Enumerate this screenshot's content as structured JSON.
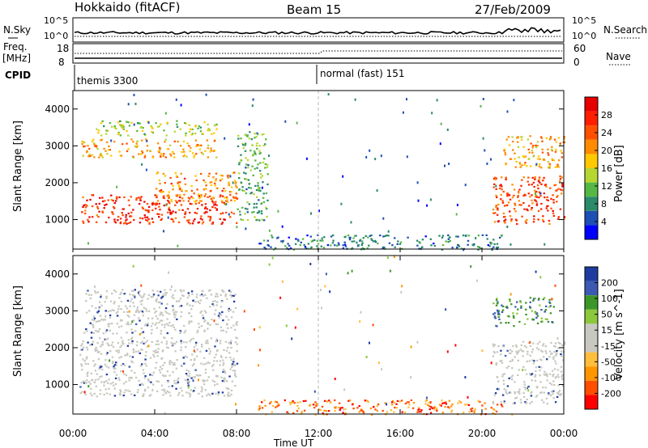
{
  "header": {
    "station": "Hokkaido (fitACF)",
    "beam": "Beam 15",
    "date": "27/Feb/2009"
  },
  "strip": {
    "nsky_label": "N.Sky",
    "freq_label_1": "Freq.",
    "freq_label_2": "[MHz]",
    "cpid_label": "CPID",
    "nsearch_label": "N.Search",
    "nave_label": "Nave",
    "noise_ticks_left": [
      "10^5",
      "10^0"
    ],
    "noise_ticks_right": [
      "10^5",
      "10^0"
    ],
    "freq_ticks": [
      "18",
      "8"
    ],
    "nave_ticks": [
      "60",
      "0"
    ],
    "cpid_modes": [
      "themis 3300",
      "normal (fast) 151"
    ]
  },
  "colors": {
    "power_scale": [
      "#0000ff",
      "#1e4fb4",
      "#2a8a6a",
      "#55b845",
      "#b6d632",
      "#ffc800",
      "#ff8c00",
      "#ff5000",
      "#ff1e00",
      "#e60000"
    ],
    "velocity_scale": [
      "#ff0000",
      "#ff4e00",
      "#ff9600",
      "#ffbe3c",
      "#c8c8c0",
      "#c8c8c0",
      "#8cc83c",
      "#3c9628",
      "#3c5ab4",
      "#1e3ca0"
    ]
  },
  "chart_data": [
    {
      "type": "heatmap",
      "panel": "power",
      "xlabel": "",
      "ylabel": "Slant Range [km]",
      "xlim": [
        0,
        24
      ],
      "ylim": [
        200,
        4500
      ],
      "yticks": [
        "1000",
        "2000",
        "3000",
        "4000"
      ],
      "colorbar_label": "Power [dB]",
      "colorbar_range": [
        0,
        32
      ],
      "colorbar_ticks": [
        "4",
        "8",
        "12",
        "16",
        "20",
        "24",
        "28"
      ],
      "echo_regions": [
        {
          "time_start": 0.4,
          "time_end": 8.0,
          "range_start": 900,
          "range_end": 1700,
          "power_db": 28
        },
        {
          "time_start": 4.0,
          "time_end": 8.0,
          "range_start": 1500,
          "range_end": 2300,
          "power_db": 22
        },
        {
          "time_start": 0.4,
          "time_end": 7.0,
          "range_start": 2700,
          "range_end": 3200,
          "power_db": 20
        },
        {
          "time_start": 1.0,
          "time_end": 7.0,
          "range_start": 3300,
          "range_end": 3700,
          "power_db": 14
        },
        {
          "time_start": 8.0,
          "time_end": 9.5,
          "range_start": 1000,
          "range_end": 3400,
          "power_db": 10
        },
        {
          "time_start": 9.0,
          "time_end": 21.0,
          "range_start": 200,
          "range_end": 600,
          "power_db": 6
        },
        {
          "time_start": 20.5,
          "time_end": 24.0,
          "range_start": 900,
          "range_end": 2200,
          "power_db": 26
        },
        {
          "time_start": 21.0,
          "time_end": 24.0,
          "range_start": 2400,
          "range_end": 3300,
          "power_db": 20
        }
      ]
    },
    {
      "type": "heatmap",
      "panel": "velocity",
      "xlabel": "Time UT",
      "ylabel": "Slant Range [km]",
      "xlim": [
        0,
        24
      ],
      "ylim": [
        200,
        4500
      ],
      "xticks": [
        "00:00",
        "04:00",
        "08:00",
        "12:00",
        "16:00",
        "20:00",
        "00:00"
      ],
      "yticks": [
        "1000",
        "2000",
        "3000",
        "4000"
      ],
      "colorbar_label": "Velocity [m s^-1]",
      "colorbar_ticks": [
        "200",
        "100",
        "50",
        "15",
        "-15",
        "-50",
        "-100",
        "-200"
      ],
      "echo_regions": [
        {
          "time_start": 0.3,
          "time_end": 8.0,
          "range_start": 700,
          "range_end": 2300,
          "velocity": 0
        },
        {
          "time_start": 0.5,
          "time_end": 8.0,
          "range_start": 2400,
          "range_end": 3600,
          "velocity": 0
        },
        {
          "time_start": 9.0,
          "time_end": 21.0,
          "range_start": 200,
          "range_end": 600,
          "velocity": -60
        },
        {
          "time_start": 20.5,
          "time_end": 24.0,
          "range_start": 500,
          "range_end": 2200,
          "velocity": 0
        },
        {
          "time_start": 20.5,
          "time_end": 23.5,
          "range_start": 2600,
          "range_end": 3400,
          "velocity": 40
        }
      ]
    }
  ]
}
